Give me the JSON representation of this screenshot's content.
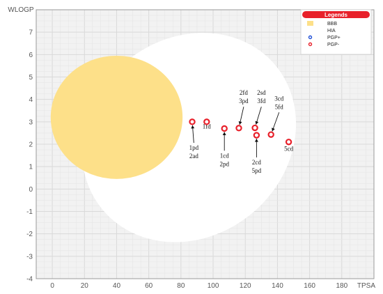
{
  "chart_data": {
    "type": "scatter",
    "xlabel": "TPSA",
    "ylabel": "WLOGP",
    "xlim": [
      -10,
      200
    ],
    "ylim": [
      -4,
      8
    ],
    "x_ticks": [
      0,
      20,
      40,
      60,
      80,
      100,
      120,
      140,
      160,
      180
    ],
    "y_ticks": [
      -4,
      -3,
      -2,
      -1,
      0,
      1,
      2,
      3,
      4,
      5,
      6,
      7
    ],
    "grid": true,
    "regions": [
      {
        "name": "HIA",
        "shape": "ellipse",
        "color": "#ffffff",
        "cx": 85,
        "cy": 2.3,
        "rx": 70,
        "ry": 4.4,
        "rotation_deg": -40
      },
      {
        "name": "BBB",
        "shape": "ellipse",
        "color": "#fde089",
        "cx": 40,
        "cy": 3.2,
        "rx": 41,
        "ry": 2.75,
        "rotation_deg": 0
      }
    ],
    "series": [
      {
        "name": "PGP-",
        "marker_color": "#e8202a",
        "points": [
          {
            "x": 87,
            "y": 3.0
          },
          {
            "x": 96,
            "y": 3.0
          },
          {
            "x": 107,
            "y": 2.7
          },
          {
            "x": 116,
            "y": 2.72
          },
          {
            "x": 126,
            "y": 2.73
          },
          {
            "x": 127,
            "y": 2.4
          },
          {
            "x": 136,
            "y": 2.43
          },
          {
            "x": 147,
            "y": 2.1
          }
        ]
      }
    ],
    "annotations": [
      {
        "lines": [
          "1pd",
          "2ad"
        ],
        "x": 88,
        "y": 1.75,
        "arrow_to": [
          87,
          3.0
        ]
      },
      {
        "lines": [
          "1fd"
        ],
        "x": 96,
        "y": 2.7,
        "arrow_to": null
      },
      {
        "lines": [
          "1cd",
          "2pd"
        ],
        "x": 107,
        "y": 1.4,
        "arrow_to": [
          107,
          2.7
        ]
      },
      {
        "lines": [
          "2fd",
          "3pd"
        ],
        "x": 119,
        "y": 4.2,
        "arrow_to": [
          116,
          2.72
        ]
      },
      {
        "lines": [
          "2sd",
          "3fd"
        ],
        "x": 130,
        "y": 4.2,
        "arrow_to": [
          126,
          2.73
        ]
      },
      {
        "lines": [
          "2cd",
          "5pd"
        ],
        "x": 127,
        "y": 1.1,
        "arrow_to": [
          127,
          2.4
        ]
      },
      {
        "lines": [
          "3cd",
          "5fd"
        ],
        "x": 141,
        "y": 3.95,
        "arrow_to": [
          136,
          2.43
        ]
      },
      {
        "lines": [
          "5cd"
        ],
        "x": 147,
        "y": 1.7,
        "arrow_to": null
      }
    ],
    "legend": {
      "title": "Legends",
      "placement": "top-right",
      "title_color": "#e8202a",
      "entries": [
        {
          "label": "BBB",
          "kind": "swatch",
          "color": "#fde089"
        },
        {
          "label": "HIA",
          "kind": "swatch",
          "color": "#ffffff"
        },
        {
          "label": "PGP+",
          "kind": "circle",
          "color": "#1f4fd6"
        },
        {
          "label": "PGP-",
          "kind": "circle",
          "color": "#e8202a"
        }
      ]
    }
  }
}
